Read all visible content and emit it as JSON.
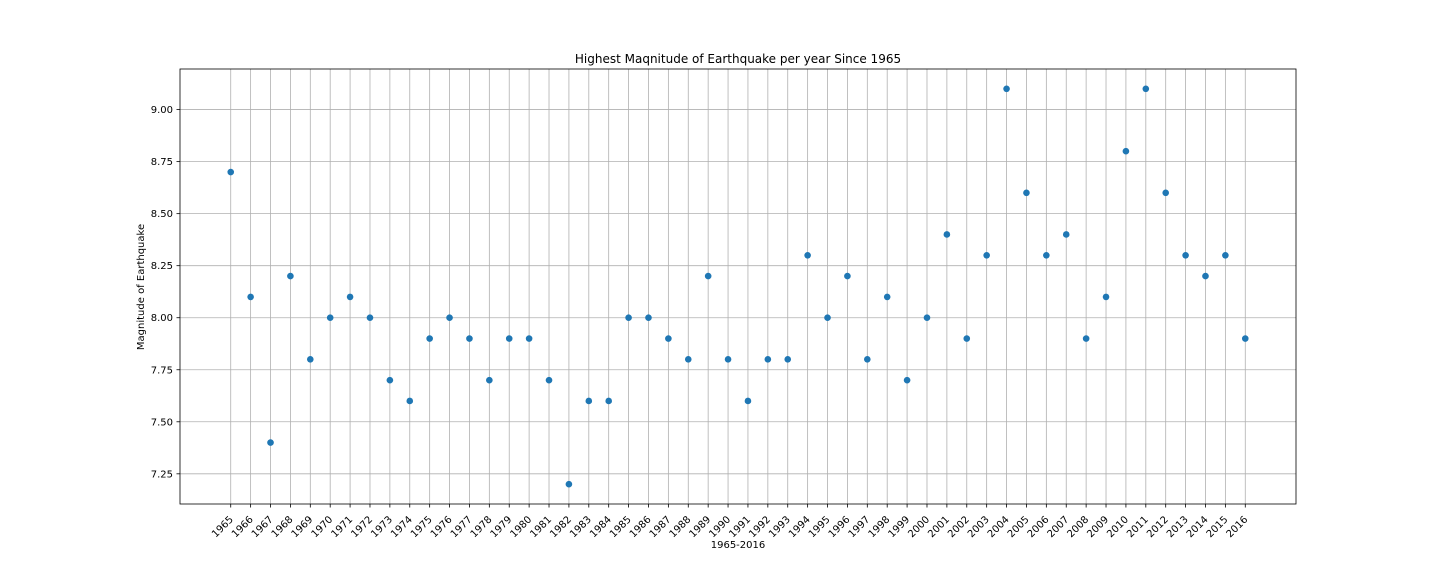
{
  "chart_data": {
    "type": "scatter",
    "title": "Highest Maqnitude of Earthquake per year Since 1965",
    "xlabel": "1965-2016",
    "ylabel": "Magnitude of Earthquake",
    "x": [
      "1965",
      "1966",
      "1967",
      "1968",
      "1969",
      "1970",
      "1971",
      "1972",
      "1973",
      "1974",
      "1975",
      "1976",
      "1977",
      "1978",
      "1979",
      "1980",
      "1981",
      "1982",
      "1983",
      "1984",
      "1985",
      "1986",
      "1987",
      "1988",
      "1989",
      "1990",
      "1991",
      "1992",
      "1993",
      "1994",
      "1995",
      "1996",
      "1997",
      "1998",
      "1999",
      "2000",
      "2001",
      "2002",
      "2003",
      "2004",
      "2005",
      "2006",
      "2007",
      "2008",
      "2009",
      "2010",
      "2011",
      "2012",
      "2013",
      "2014",
      "2015",
      "2016"
    ],
    "y": [
      8.7,
      8.1,
      7.4,
      8.2,
      7.8,
      8.0,
      8.1,
      8.0,
      7.7,
      7.6,
      7.9,
      8.0,
      7.9,
      7.7,
      7.9,
      7.9,
      7.7,
      7.2,
      7.6,
      7.6,
      8.0,
      8.0,
      7.9,
      7.8,
      8.2,
      7.8,
      7.6,
      7.8,
      7.8,
      8.3,
      8.0,
      8.2,
      7.8,
      8.1,
      7.7,
      8.0,
      8.4,
      7.9,
      8.3,
      9.1,
      8.6,
      8.3,
      8.4,
      7.9,
      8.1,
      8.8,
      9.1,
      8.6,
      8.3,
      8.2,
      8.3,
      7.9
    ],
    "yticks": [
      "7.25",
      "7.50",
      "7.75",
      "8.00",
      "8.25",
      "8.50",
      "8.75",
      "9.00"
    ],
    "ylim": [
      7.105,
      9.195
    ],
    "grid": true,
    "marker_color": "#1f77b4"
  }
}
